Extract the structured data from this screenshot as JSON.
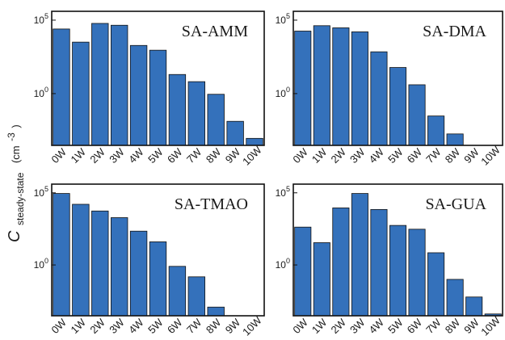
{
  "figure": {
    "ylabel_main": "C",
    "ylabel_sub": "steady-state",
    "ylabel_unit": "(cm",
    "ylabel_unit_exp": "-3",
    "ylabel_unit_close": ")"
  },
  "chart_data": [
    {
      "type": "bar",
      "title": "SA-AMM",
      "categories": [
        "0W",
        "1W",
        "2W",
        "3W",
        "4W",
        "5W",
        "6W",
        "7W",
        "8W",
        "9W",
        "10W"
      ],
      "values": [
        25000,
        3200,
        60000,
        45000,
        1900,
        900,
        20,
        6.5,
        0.9,
        0.013,
        0.0009
      ],
      "y_scale": "log",
      "ylim": [
        0.0003,
        400000
      ],
      "y_ticks": [
        {
          "value": 100000,
          "base": "10",
          "exp": "5"
        },
        {
          "value": 1,
          "base": "10",
          "exp": "0"
        }
      ],
      "grid": false,
      "bar_color": "#3471bb"
    },
    {
      "type": "bar",
      "title": "SA-DMA",
      "categories": [
        "0W",
        "1W",
        "2W",
        "3W",
        "4W",
        "5W",
        "6W",
        "7W",
        "8W",
        "9W",
        "10W"
      ],
      "values": [
        18000,
        42000,
        30000,
        16000,
        700,
        60,
        4,
        0.03,
        0.0018,
        null,
        null
      ],
      "y_scale": "log",
      "ylim": [
        0.0003,
        400000
      ],
      "y_ticks": [
        {
          "value": 100000,
          "base": "10",
          "exp": "5"
        },
        {
          "value": 1,
          "base": "10",
          "exp": "0"
        }
      ],
      "grid": false,
      "bar_color": "#3471bb"
    },
    {
      "type": "bar",
      "title": "SA-TMAO",
      "categories": [
        "0W",
        "1W",
        "2W",
        "3W",
        "4W",
        "5W",
        "6W",
        "7W",
        "8W",
        "9W",
        "10W"
      ],
      "values": [
        90000,
        16000,
        5500,
        1900,
        220,
        40,
        0.8,
        0.15,
        0.0012,
        null,
        null
      ],
      "y_scale": "log",
      "ylim": [
        0.0003,
        400000
      ],
      "y_ticks": [
        {
          "value": 100000,
          "base": "10",
          "exp": "5"
        },
        {
          "value": 1,
          "base": "10",
          "exp": "0"
        }
      ],
      "grid": false,
      "bar_color": "#3471bb"
    },
    {
      "type": "bar",
      "title": "SA-GUA",
      "categories": [
        "0W",
        "1W",
        "2W",
        "3W",
        "4W",
        "5W",
        "6W",
        "7W",
        "8W",
        "9W",
        "10W"
      ],
      "values": [
        420,
        35,
        9000,
        90000,
        7000,
        550,
        300,
        7,
        0.1,
        0.006,
        0.0004
      ],
      "y_scale": "log",
      "ylim": [
        0.0003,
        400000
      ],
      "y_ticks": [
        {
          "value": 100000,
          "base": "10",
          "exp": "5"
        },
        {
          "value": 1,
          "base": "10",
          "exp": "0"
        }
      ],
      "grid": false,
      "bar_color": "#3471bb"
    }
  ]
}
